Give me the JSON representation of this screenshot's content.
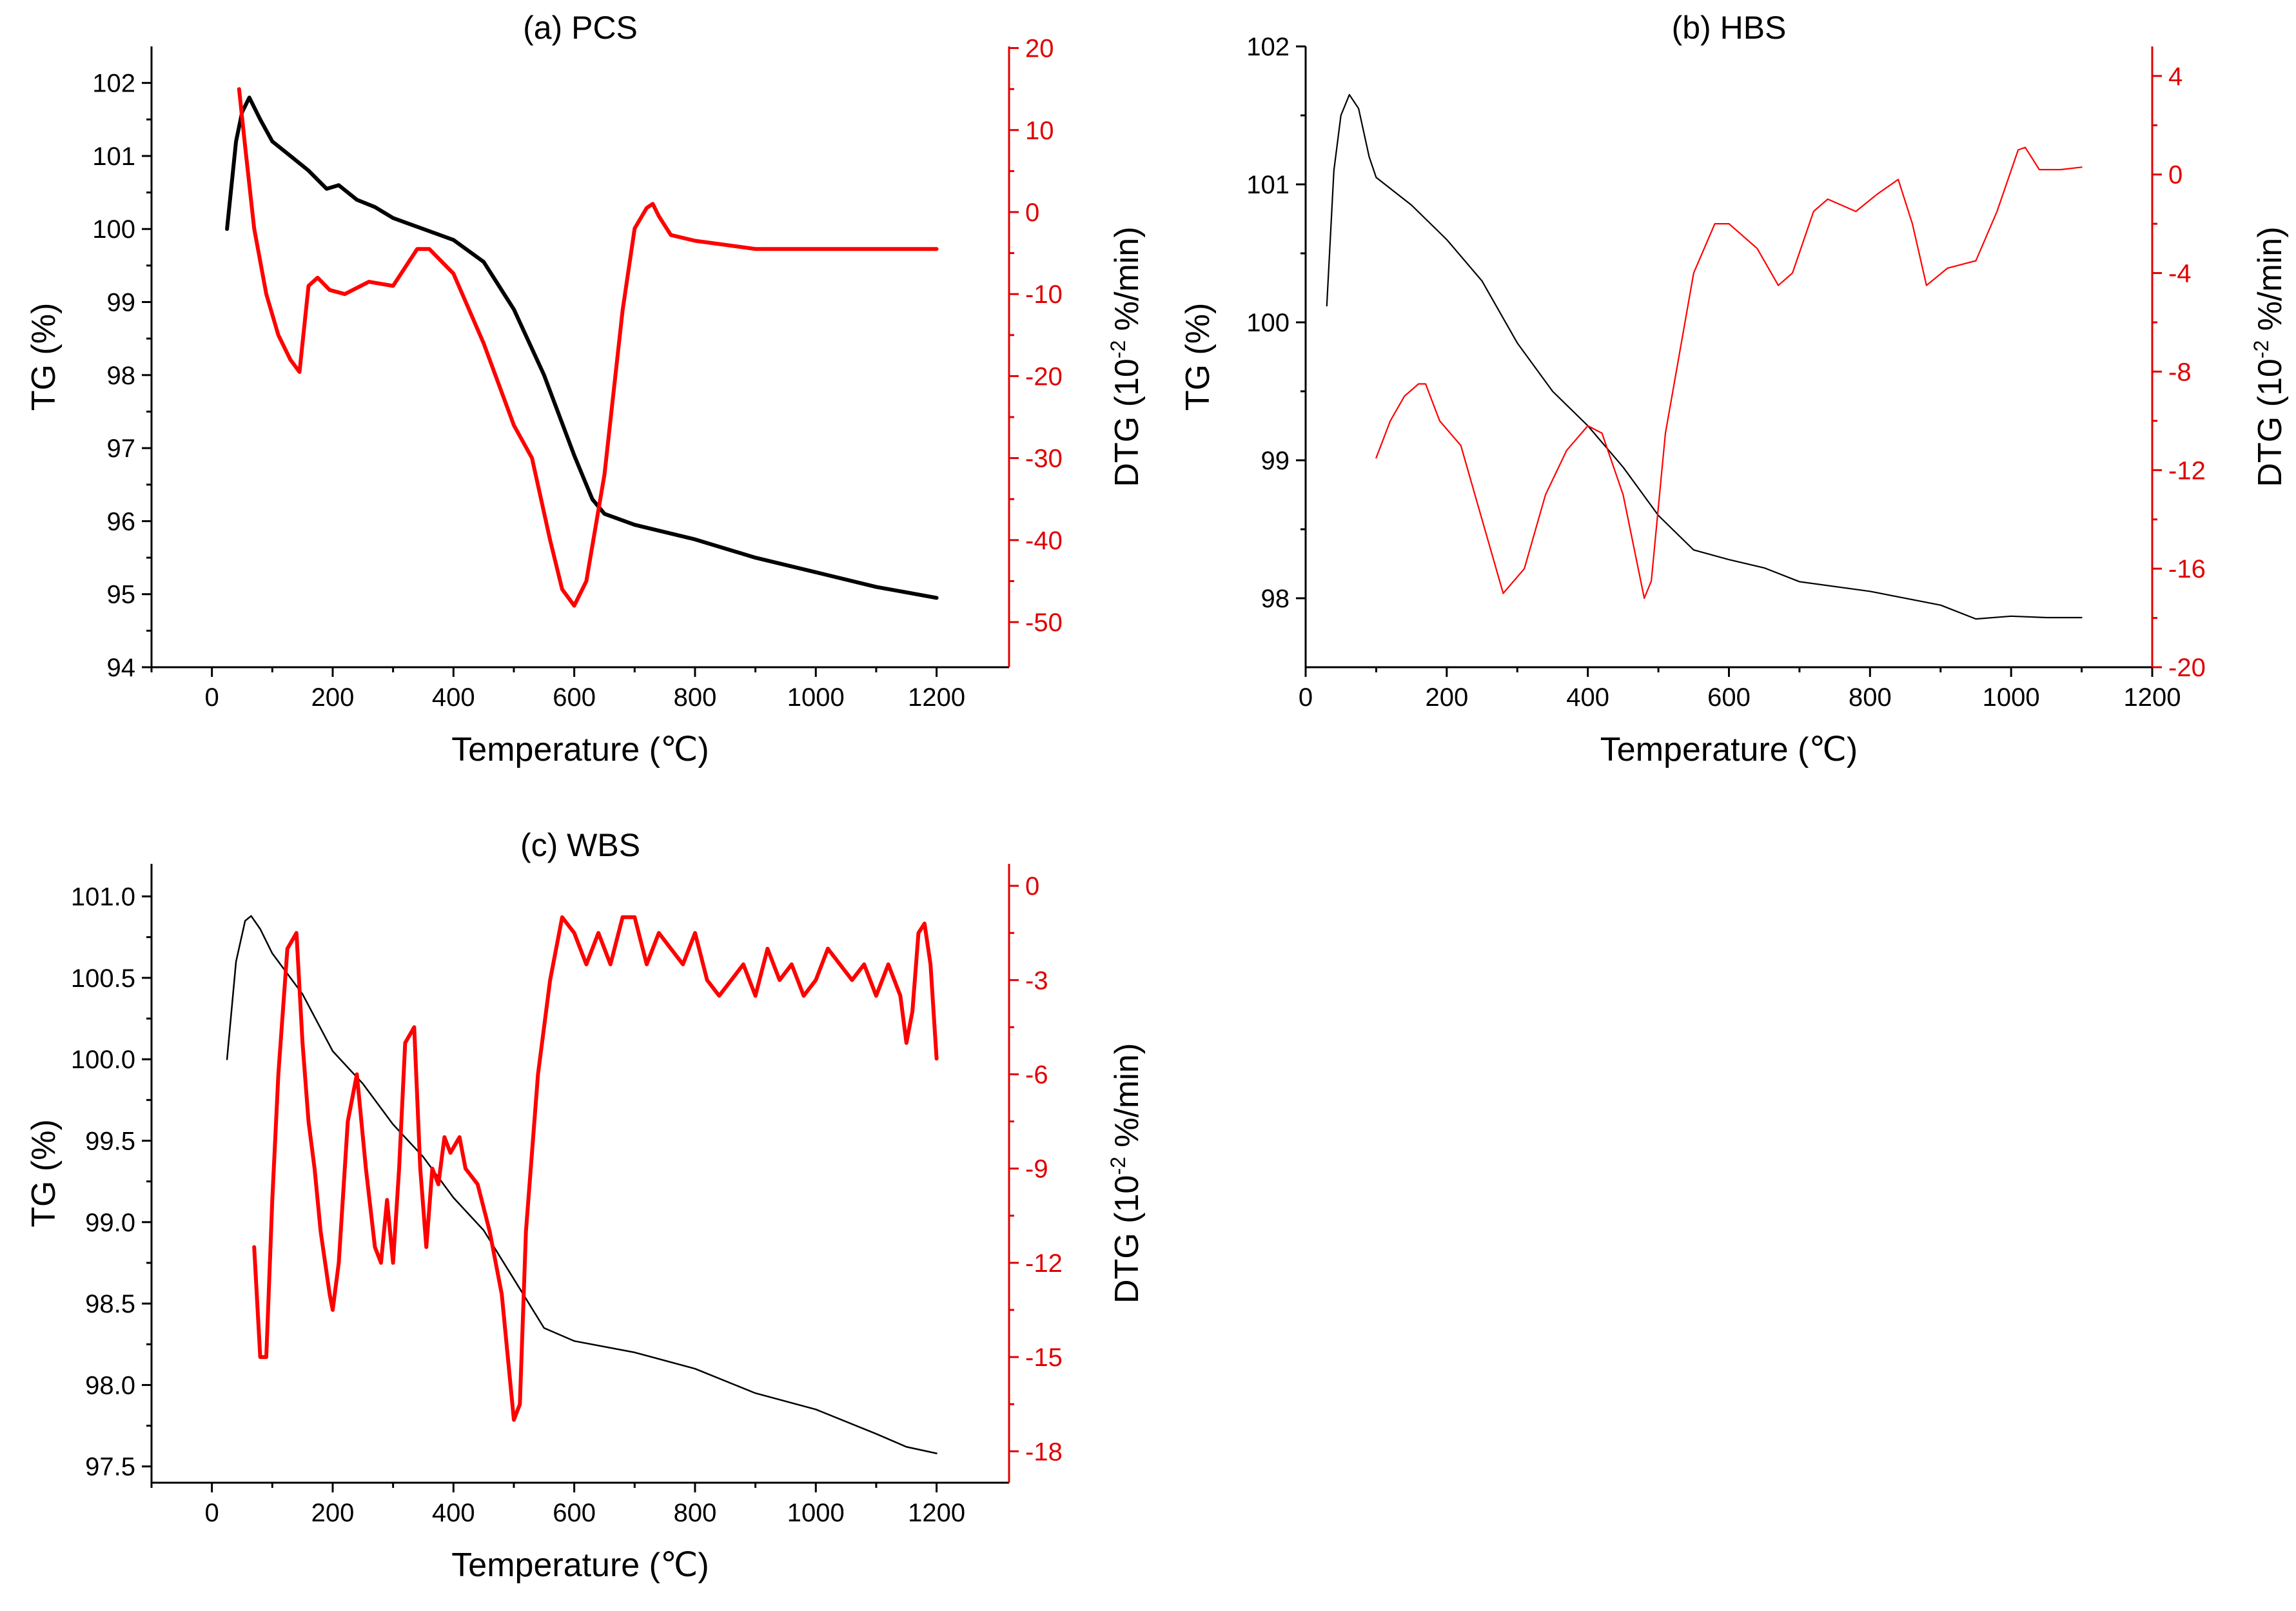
{
  "colors": {
    "tg": "#000000",
    "dtg": "#ff0000",
    "dtg_axis": "#e00000"
  },
  "chart_data": [
    {
      "id": "a",
      "type": "line",
      "title": "(a) PCS",
      "xlabel": "Temperature (℃)",
      "ylabel": "TG (%)",
      "y2label": "DTG (10⁻² %/min)",
      "xlim": [
        -100,
        1320
      ],
      "ylim": [
        94,
        102.5
      ],
      "y2lim": [
        -55.5,
        20.2
      ],
      "xticks": [
        0,
        200,
        400,
        600,
        800,
        1000,
        1200
      ],
      "yticks": [
        94,
        95,
        96,
        97,
        98,
        99,
        100,
        101,
        102
      ],
      "y2ticks": [
        -50,
        -40,
        -30,
        -20,
        -10,
        0,
        10,
        20
      ],
      "series": [
        {
          "name": "TG",
          "axis": "left",
          "width": 6,
          "x": [
            25,
            40,
            50,
            62,
            80,
            100,
            130,
            160,
            190,
            210,
            240,
            270,
            300,
            350,
            400,
            450,
            500,
            550,
            600,
            630,
            650,
            700,
            800,
            900,
            1000,
            1100,
            1200
          ],
          "y": [
            100.0,
            101.2,
            101.6,
            101.8,
            101.5,
            101.2,
            101.0,
            100.8,
            100.55,
            100.6,
            100.4,
            100.3,
            100.15,
            100.0,
            99.85,
            99.55,
            98.9,
            98.0,
            96.9,
            96.3,
            96.1,
            95.95,
            95.75,
            95.5,
            95.3,
            95.1,
            94.95
          ]
        },
        {
          "name": "DTG",
          "axis": "right",
          "width": 6,
          "x": [
            45,
            55,
            70,
            90,
            110,
            130,
            145,
            160,
            175,
            195,
            220,
            260,
            300,
            340,
            360,
            400,
            450,
            500,
            530,
            560,
            580,
            600,
            620,
            650,
            680,
            700,
            720,
            730,
            740,
            760,
            800,
            900,
            1000,
            1100,
            1200
          ],
          "y": [
            15,
            8,
            -2,
            -10,
            -15,
            -18,
            -19.5,
            -9,
            -8,
            -9.5,
            -10,
            -8.5,
            -9,
            -4.5,
            -4.5,
            -7.5,
            -16,
            -26,
            -30,
            -40,
            -46,
            -48,
            -45,
            -32,
            -12,
            -2,
            0.5,
            1,
            -0.5,
            -2.8,
            -3.5,
            -4.5,
            -4.5,
            -4.5,
            -4.5
          ]
        }
      ]
    },
    {
      "id": "b",
      "type": "line",
      "title": "(b) HBS",
      "xlabel": "Temperature (℃)",
      "ylabel": "TG (%)",
      "y2label": "DTG (10⁻² %/min)",
      "xlim": [
        0,
        1200
      ],
      "ylim": [
        97.5,
        102
      ],
      "y2lim": [
        -20,
        5.2
      ],
      "xticks": [
        0,
        200,
        400,
        600,
        800,
        1000,
        1200
      ],
      "yticks": [
        98,
        99,
        100,
        101,
        102
      ],
      "y2ticks": [
        -20,
        -16,
        -12,
        -8,
        -4,
        0,
        4
      ],
      "series": [
        {
          "name": "TG",
          "axis": "left",
          "width": 2.2,
          "x": [
            30,
            40,
            50,
            62,
            75,
            90,
            100,
            150,
            200,
            250,
            300,
            350,
            400,
            450,
            500,
            550,
            600,
            650,
            700,
            800,
            900,
            950,
            1000,
            1050,
            1100
          ],
          "y": [
            100.12,
            101.1,
            101.5,
            101.65,
            101.55,
            101.2,
            101.05,
            100.85,
            100.6,
            100.3,
            99.85,
            99.5,
            99.25,
            98.95,
            98.6,
            98.35,
            98.28,
            98.22,
            98.12,
            98.05,
            97.95,
            97.85,
            97.87,
            97.86,
            97.86
          ]
        },
        {
          "name": "DTG",
          "axis": "right",
          "width": 2.2,
          "x": [
            100,
            120,
            140,
            160,
            170,
            190,
            220,
            250,
            280,
            310,
            340,
            370,
            400,
            420,
            450,
            480,
            490,
            510,
            550,
            580,
            600,
            640,
            670,
            690,
            720,
            740,
            780,
            810,
            840,
            860,
            880,
            910,
            950,
            980,
            1010,
            1020,
            1040,
            1070,
            1100
          ],
          "y": [
            -11.5,
            -10,
            -9,
            -8.5,
            -8.5,
            -10,
            -11,
            -14,
            -17,
            -16,
            -13,
            -11.2,
            -10.2,
            -10.5,
            -13,
            -17.2,
            -16.5,
            -10.5,
            -4,
            -2,
            -2,
            -3,
            -4.5,
            -4,
            -1.5,
            -1,
            -1.5,
            -0.8,
            -0.2,
            -2,
            -4.5,
            -3.8,
            -3.5,
            -1.5,
            1,
            1.1,
            0.2,
            0.2,
            0.3
          ]
        }
      ]
    },
    {
      "id": "c",
      "type": "line",
      "title": "(c) WBS",
      "xlabel": "Temperature (℃)",
      "ylabel": "TG (%)",
      "y2label": "DTG (10⁻² %/min)",
      "xlim": [
        -100,
        1320
      ],
      "ylim": [
        97.4,
        101.2
      ],
      "y2lim": [
        -19,
        0.7
      ],
      "xticks": [
        0,
        200,
        400,
        600,
        800,
        1000,
        1200
      ],
      "yticks": [
        97.5,
        98.0,
        98.5,
        99.0,
        99.5,
        100.0,
        100.5,
        101.0
      ],
      "y2ticks": [
        -18,
        -15,
        -12,
        -9,
        -6,
        -3,
        0
      ],
      "series": [
        {
          "name": "TG",
          "axis": "left",
          "width": 2.5,
          "x": [
            25,
            40,
            55,
            65,
            80,
            100,
            150,
            200,
            250,
            300,
            350,
            400,
            450,
            500,
            550,
            600,
            700,
            800,
            900,
            1000,
            1100,
            1150,
            1200
          ],
          "y": [
            100.0,
            100.6,
            100.85,
            100.88,
            100.8,
            100.65,
            100.4,
            100.05,
            99.85,
            99.6,
            99.4,
            99.15,
            98.95,
            98.65,
            98.35,
            98.27,
            98.2,
            98.1,
            97.95,
            97.85,
            97.7,
            97.62,
            97.58
          ]
        },
        {
          "name": "DTG",
          "axis": "right",
          "width": 6,
          "x": [
            70,
            80,
            90,
            100,
            110,
            125,
            140,
            150,
            160,
            170,
            180,
            195,
            200,
            210,
            225,
            240,
            255,
            270,
            280,
            290,
            300,
            310,
            320,
            335,
            345,
            355,
            365,
            375,
            385,
            395,
            410,
            420,
            440,
            460,
            480,
            500,
            510,
            520,
            540,
            560,
            580,
            600,
            620,
            640,
            660,
            680,
            700,
            720,
            740,
            760,
            780,
            800,
            820,
            840,
            860,
            880,
            900,
            920,
            940,
            960,
            980,
            1000,
            1020,
            1040,
            1060,
            1080,
            1100,
            1120,
            1140,
            1150,
            1160,
            1170,
            1180,
            1190,
            1200
          ],
          "y": [
            -11.5,
            -15,
            -15,
            -10,
            -6,
            -2,
            -1.5,
            -5,
            -7.5,
            -9,
            -11,
            -13,
            -13.5,
            -12,
            -7.5,
            -6,
            -9,
            -11.5,
            -12,
            -10,
            -12,
            -9,
            -5,
            -4.5,
            -9,
            -11.5,
            -9,
            -9.5,
            -8,
            -8.5,
            -8,
            -9,
            -9.5,
            -11,
            -13,
            -17,
            -16.5,
            -11,
            -6,
            -3,
            -1,
            -1.5,
            -2.5,
            -1.5,
            -2.5,
            -1,
            -1,
            -2.5,
            -1.5,
            -2,
            -2.5,
            -1.5,
            -3,
            -3.5,
            -3,
            -2.5,
            -3.5,
            -2,
            -3,
            -2.5,
            -3.5,
            -3,
            -2,
            -2.5,
            -3,
            -2.5,
            -3.5,
            -2.5,
            -3.5,
            -5,
            -4,
            -1.5,
            -1.2,
            -2.5,
            -5.5
          ]
        }
      ]
    }
  ]
}
